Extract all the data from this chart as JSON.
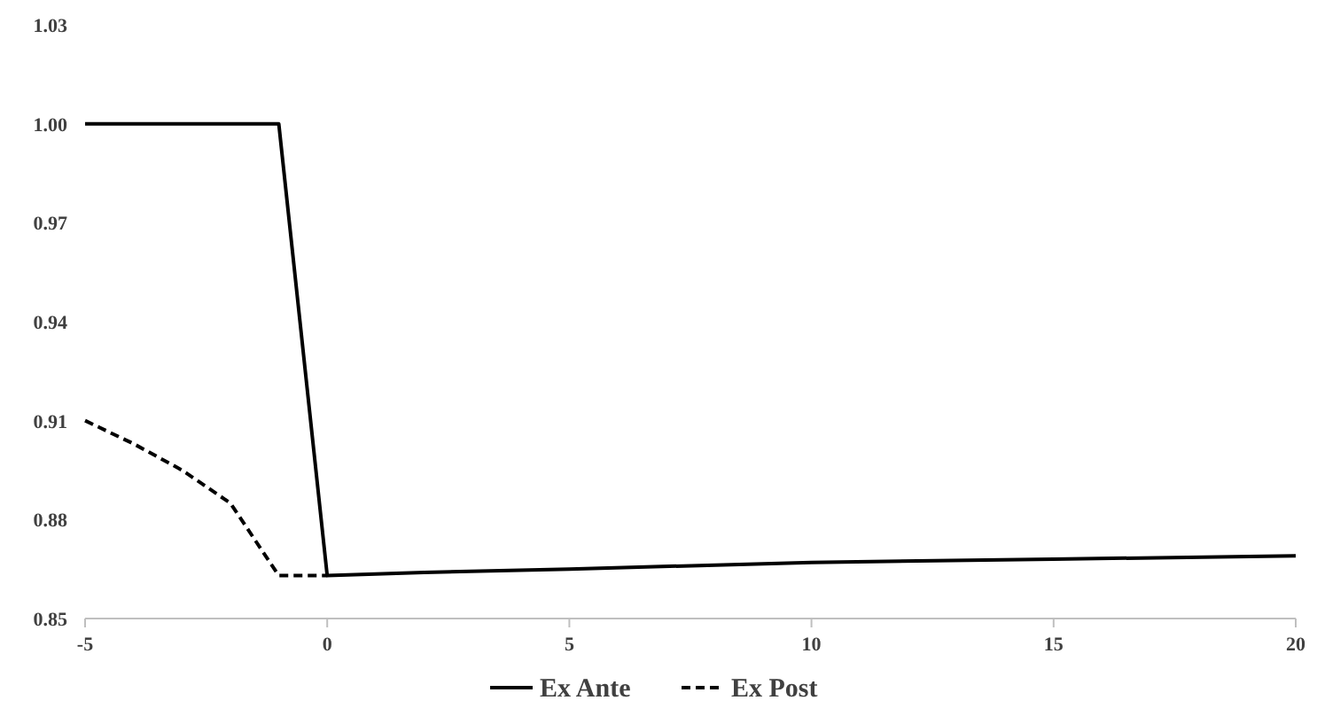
{
  "chart_data": {
    "type": "line",
    "xlim": [
      -5,
      20
    ],
    "xticks": [
      -5,
      0,
      5,
      10,
      15,
      20
    ],
    "ylim": [
      0.85,
      1.03
    ],
    "yticks": [
      0.85,
      0.88,
      0.91,
      0.94,
      0.97,
      {
        "value": 1.0,
        "label": "1.00"
      },
      1.03
    ],
    "grid": false,
    "legend": "bottom",
    "marker": "none",
    "series": [
      {
        "name": "Ex Ante",
        "color": "#000000",
        "line_style": "solid",
        "x": [
          -5,
          -4,
          -3,
          -2,
          -1,
          0,
          2,
          5,
          10,
          15,
          20
        ],
        "values": [
          1.0,
          1.0,
          1.0,
          1.0,
          1.0,
          0.863,
          0.864,
          0.865,
          0.867,
          0.868,
          0.869
        ]
      },
      {
        "name": "Ex Post",
        "color": "#000000",
        "line_style": "dashed",
        "x": [
          -5,
          -4,
          -3,
          -2,
          -1,
          0
        ],
        "values": [
          0.91,
          0.903,
          0.895,
          0.885,
          0.863,
          0.863
        ]
      }
    ]
  }
}
